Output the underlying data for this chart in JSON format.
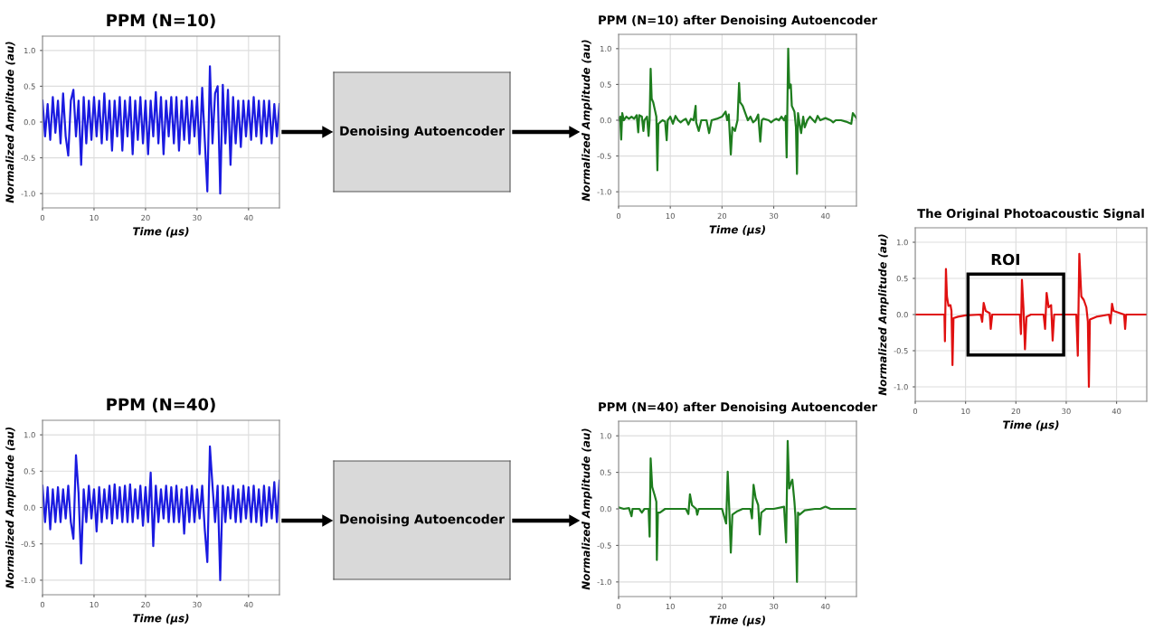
{
  "chart_data": [
    {
      "type": "line",
      "title": "PPM (N=10)",
      "xlabel": "Time (µs)",
      "ylabel": "Normalized Amplitude (au)",
      "color": "#1a1ae0",
      "grid": true,
      "xlim": [
        0,
        46
      ],
      "ylim": [
        -1.2,
        1.2
      ],
      "xticks": [
        0,
        10,
        20,
        30,
        40
      ],
      "yticks": [
        {
          "value": -1,
          "label": "-1.0"
        },
        {
          "value": -0.5,
          "label": "-0.5"
        },
        {
          "value": 0,
          "label": "0.0"
        },
        {
          "value": 0.5,
          "label": "0.5"
        },
        {
          "value": 1,
          "label": "1.0"
        }
      ],
      "x": [
        0,
        0.5,
        1,
        1.5,
        2,
        2.5,
        3,
        3.5,
        4,
        4.5,
        5,
        5.5,
        6,
        6.5,
        7,
        7.5,
        8,
        8.5,
        9,
        9.5,
        10,
        10.5,
        11,
        11.5,
        12,
        12.5,
        13,
        13.5,
        14,
        14.5,
        15,
        15.5,
        16,
        16.5,
        17,
        17.5,
        18,
        18.5,
        19,
        19.5,
        20,
        20.5,
        21,
        21.5,
        22,
        22.5,
        23,
        23.5,
        24,
        24.5,
        25,
        25.5,
        26,
        26.5,
        27,
        27.5,
        28,
        28.5,
        29,
        29.5,
        30,
        30.5,
        31,
        31.5,
        32,
        32.5,
        33,
        33.5,
        34,
        34.5,
        35,
        35.5,
        36,
        36.5,
        37,
        37.5,
        38,
        38.5,
        39,
        39.5,
        40,
        40.5,
        41,
        41.5,
        42,
        42.5,
        43,
        43.5,
        44,
        44.5,
        45,
        45.5,
        46
      ],
      "values": [
        0.3,
        -0.2,
        0.25,
        -0.25,
        0.35,
        -0.15,
        0.3,
        -0.3,
        0.4,
        -0.2,
        -0.47,
        0.3,
        0.45,
        -0.2,
        0.3,
        -0.6,
        0.35,
        -0.3,
        0.3,
        -0.25,
        0.35,
        -0.2,
        0.3,
        -0.3,
        0.4,
        -0.25,
        0.3,
        -0.4,
        0.3,
        -0.2,
        0.35,
        -0.4,
        0.3,
        -0.2,
        0.35,
        -0.45,
        0.3,
        -0.25,
        0.35,
        -0.3,
        0.3,
        -0.45,
        0.3,
        -0.2,
        0.42,
        -0.3,
        0.35,
        -0.45,
        0.3,
        -0.2,
        0.35,
        -0.3,
        0.35,
        -0.4,
        0.3,
        -0.25,
        0.35,
        -0.3,
        0.3,
        -0.2,
        0.35,
        -0.45,
        0.48,
        -0.25,
        -0.97,
        0.78,
        -0.3,
        0.4,
        0.5,
        -1.0,
        0.52,
        -0.3,
        0.45,
        -0.6,
        0.35,
        -0.3,
        0.3,
        -0.35,
        0.3,
        -0.2,
        0.3,
        -0.25,
        0.35,
        -0.2,
        0.3,
        -0.3,
        0.3,
        -0.2,
        0.3,
        -0.3,
        0.25,
        -0.2,
        0.25
      ]
    },
    {
      "type": "line",
      "title": "PPM (N=10) after Denoising Autoencoder",
      "xlabel": "Time (µs)",
      "ylabel": "Normalized Amplitude (au)",
      "color": "#1e7d1e",
      "grid": true,
      "xlim": [
        0,
        46
      ],
      "ylim": [
        -1.2,
        1.2
      ],
      "xticks": [
        0,
        10,
        20,
        30,
        40
      ],
      "yticks": [
        {
          "value": -1,
          "label": "-1.0"
        },
        {
          "value": -0.5,
          "label": "-0.5"
        },
        {
          "value": 0,
          "label": "0.0"
        },
        {
          "value": 0.5,
          "label": "0.5"
        },
        {
          "value": 1,
          "label": "1.0"
        }
      ],
      "x": [
        0,
        0.3,
        0.5,
        0.7,
        1,
        1.5,
        2,
        2.5,
        3,
        3.5,
        3.8,
        4,
        4.5,
        4.8,
        5,
        5.5,
        5.8,
        6,
        6.2,
        6.4,
        6.7,
        7,
        7.3,
        7.5,
        7.7,
        8,
        8.5,
        9,
        9.3,
        9.5,
        10,
        10.5,
        11,
        11.5,
        12,
        12.5,
        13,
        13.5,
        14,
        14.5,
        14.9,
        15,
        15.5,
        16,
        17,
        17.5,
        18,
        19,
        20,
        20.7,
        21,
        21.3,
        21.7,
        22,
        22.5,
        23,
        23.3,
        23.5,
        24,
        24.5,
        25,
        25.5,
        26,
        26.5,
        27,
        27.4,
        27.7,
        28,
        29,
        29.5,
        30,
        30.5,
        31,
        31.5,
        32,
        32.3,
        32.5,
        32.8,
        33,
        33.3,
        33.5,
        34,
        34.3,
        34.5,
        34.7,
        35,
        35.3,
        35.7,
        36,
        36.5,
        37,
        38,
        38.5,
        39,
        40,
        41,
        41.5,
        42,
        43,
        44,
        45,
        45.3,
        46
      ],
      "values": [
        0.0,
        0.05,
        -0.27,
        0.1,
        0.0,
        0.05,
        0.02,
        0.05,
        0.02,
        0.07,
        -0.17,
        0.07,
        0.05,
        -0.15,
        0.0,
        0.05,
        -0.22,
        0.0,
        0.72,
        0.3,
        0.25,
        0.15,
        0.05,
        -0.7,
        -0.05,
        -0.03,
        0.0,
        -0.02,
        -0.28,
        0.0,
        0.05,
        -0.05,
        0.06,
        0.0,
        -0.03,
        0.0,
        0.02,
        -0.06,
        0.02,
        0.0,
        0.2,
        -0.03,
        -0.15,
        0.0,
        0.0,
        -0.18,
        0.0,
        0.02,
        0.05,
        0.12,
        0.0,
        0.08,
        -0.48,
        -0.1,
        -0.15,
        0.0,
        0.52,
        0.25,
        0.2,
        0.1,
        0.0,
        0.05,
        -0.03,
        0.0,
        0.08,
        -0.3,
        0.0,
        0.02,
        0.0,
        -0.03,
        0.0,
        0.02,
        0.0,
        0.05,
        0.0,
        0.06,
        -0.52,
        1.0,
        0.45,
        0.5,
        0.2,
        0.12,
        -0.1,
        -0.75,
        0.1,
        -0.05,
        -0.18,
        0.05,
        -0.1,
        0.0,
        0.05,
        -0.03,
        0.06,
        0.0,
        0.03,
        0.0,
        -0.03,
        0.0,
        0.0,
        -0.02,
        -0.05,
        0.1,
        0.03
      ]
    },
    {
      "type": "line",
      "title": "The Original Photoacoustic Signal",
      "xlabel": "Time (µs)",
      "ylabel": "Normalized Amplitude (au)",
      "color": "#e01010",
      "grid": true,
      "xlim": [
        0,
        46
      ],
      "ylim": [
        -1.2,
        1.2
      ],
      "xticks": [
        0,
        10,
        20,
        30,
        40
      ],
      "yticks": [
        {
          "value": -1,
          "label": "-1.0"
        },
        {
          "value": -0.5,
          "label": "-0.5"
        },
        {
          "value": 0,
          "label": "0.0"
        },
        {
          "value": 0.5,
          "label": "0.5"
        },
        {
          "value": 1,
          "label": "1.0"
        }
      ],
      "annotations": [
        "ROI"
      ],
      "x": [
        0,
        5,
        5.8,
        5.9,
        6.1,
        6.3,
        6.6,
        7,
        7.2,
        7.4,
        7.6,
        8.5,
        10,
        13,
        13.3,
        13.6,
        14,
        14.8,
        15,
        15.3,
        20,
        20.8,
        21,
        21.2,
        21.5,
        21.8,
        22.1,
        23,
        25.5,
        25.8,
        26.1,
        26.5,
        27,
        27.3,
        27.6,
        32,
        32.3,
        32.6,
        33,
        33.5,
        34,
        34.3,
        34.5,
        34.7,
        36,
        38.5,
        38.8,
        39.1,
        39.4,
        41.5,
        41.7,
        41.9,
        46
      ],
      "values": [
        0,
        0,
        0,
        -0.37,
        0.63,
        0.25,
        0.12,
        0.13,
        0.05,
        -0.7,
        -0.05,
        -0.03,
        -0.01,
        0,
        -0.1,
        0.16,
        0.05,
        0.02,
        -0.2,
        0,
        0,
        0,
        -0.27,
        0.48,
        0.1,
        -0.48,
        -0.03,
        0,
        0,
        -0.2,
        0.3,
        0.1,
        0.13,
        -0.36,
        0,
        0,
        -0.57,
        0.84,
        0.25,
        0.2,
        0.1,
        -0.1,
        -1.0,
        -0.07,
        -0.03,
        0,
        -0.12,
        0.15,
        0.05,
        0.0,
        -0.2,
        0,
        0
      ]
    },
    {
      "type": "line",
      "title": "PPM (N=40)",
      "xlabel": "Time (µs)",
      "ylabel": "Normalized Amplitude (au)",
      "color": "#1a1ae0",
      "grid": true,
      "xlim": [
        0,
        46
      ],
      "ylim": [
        -1.2,
        1.2
      ],
      "xticks": [
        0,
        10,
        20,
        30,
        40
      ],
      "yticks": [
        {
          "value": -1,
          "label": "-1.0"
        },
        {
          "value": -0.5,
          "label": "-0.5"
        },
        {
          "value": 0,
          "label": "0.0"
        },
        {
          "value": 0.5,
          "label": "0.5"
        },
        {
          "value": 1,
          "label": "1.0"
        }
      ],
      "x": [
        0,
        0.5,
        1,
        1.5,
        2,
        2.5,
        3,
        3.5,
        4,
        4.5,
        5,
        5.5,
        6,
        6.5,
        7,
        7.5,
        8,
        8.5,
        9,
        9.5,
        10,
        10.5,
        11,
        11.5,
        12,
        12.5,
        13,
        13.5,
        14,
        14.5,
        15,
        15.5,
        16,
        16.5,
        17,
        17.5,
        18,
        18.5,
        19,
        19.5,
        20,
        20.5,
        21,
        21.5,
        22,
        22.5,
        23,
        23.5,
        24,
        24.5,
        25,
        25.5,
        26,
        26.5,
        27,
        27.5,
        28,
        28.5,
        29,
        29.5,
        30,
        30.5,
        31,
        31.5,
        32,
        32.5,
        33,
        33.5,
        34,
        34.5,
        35,
        35.5,
        36,
        36.5,
        37,
        37.5,
        38,
        38.5,
        39,
        39.5,
        40,
        40.5,
        41,
        41.5,
        42,
        42.5,
        43,
        43.5,
        44,
        44.5,
        45,
        45.5,
        46
      ],
      "values": [
        0.3,
        -0.2,
        0.28,
        -0.3,
        0.25,
        -0.2,
        0.28,
        -0.2,
        0.25,
        -0.15,
        0.3,
        -0.2,
        -0.43,
        0.72,
        0.2,
        -0.77,
        0.25,
        -0.2,
        0.3,
        -0.15,
        0.25,
        -0.33,
        0.28,
        -0.2,
        0.25,
        -0.15,
        0.3,
        -0.22,
        0.32,
        -0.15,
        0.28,
        -0.2,
        0.3,
        -0.2,
        0.32,
        -0.2,
        0.25,
        -0.15,
        0.3,
        -0.25,
        0.28,
        -0.2,
        0.48,
        -0.53,
        0.3,
        -0.2,
        0.25,
        -0.15,
        0.3,
        -0.2,
        0.28,
        -0.2,
        0.3,
        -0.2,
        0.25,
        -0.36,
        0.28,
        -0.2,
        0.3,
        -0.2,
        0.25,
        -0.15,
        0.3,
        -0.3,
        -0.75,
        0.84,
        0.3,
        -0.2,
        0.3,
        -1.0,
        0.3,
        -0.2,
        0.28,
        -0.15,
        0.3,
        -0.2,
        0.25,
        -0.2,
        0.3,
        -0.15,
        0.28,
        -0.2,
        0.3,
        -0.2,
        0.25,
        -0.25,
        0.3,
        -0.2,
        0.28,
        -0.15,
        0.35,
        -0.2,
        0.37
      ]
    },
    {
      "type": "line",
      "title": "PPM (N=40) after Denoising Autoencoder",
      "xlabel": "Time (µs)",
      "ylabel": "Normalized Amplitude (au)",
      "color": "#1e7d1e",
      "grid": true,
      "xlim": [
        0,
        46
      ],
      "ylim": [
        -1.2,
        1.2
      ],
      "xticks": [
        0,
        10,
        20,
        30,
        40
      ],
      "yticks": [
        {
          "value": -1,
          "label": "-1.0"
        },
        {
          "value": -0.5,
          "label": "-0.5"
        },
        {
          "value": 0,
          "label": "0.0"
        },
        {
          "value": 0.5,
          "label": "0.5"
        },
        {
          "value": 1,
          "label": "1.0"
        }
      ],
      "x": [
        0,
        1,
        2,
        2.5,
        2.7,
        4,
        4.5,
        5,
        5.8,
        6.0,
        6.2,
        6.5,
        7,
        7.3,
        7.4,
        7.6,
        8,
        9,
        10,
        13,
        13.5,
        13.8,
        14.2,
        15,
        15.2,
        15.5,
        18,
        20,
        20.8,
        21.1,
        21.4,
        21.7,
        22,
        23,
        24,
        25.5,
        25.8,
        26.1,
        26.5,
        27,
        27.3,
        27.6,
        28.5,
        30,
        32,
        32.4,
        32.7,
        33,
        33.3,
        33.6,
        34,
        34.2,
        34.5,
        34.7,
        35,
        36,
        38,
        39,
        40,
        41,
        42,
        44,
        46
      ],
      "values": [
        0.02,
        0.0,
        0.01,
        -0.1,
        0.0,
        0.0,
        -0.05,
        0.0,
        0.0,
        -0.38,
        0.69,
        0.3,
        0.18,
        0.1,
        -0.7,
        -0.05,
        -0.05,
        0.0,
        0.0,
        0.0,
        -0.07,
        0.2,
        0.05,
        0.0,
        -0.08,
        0.0,
        0.0,
        0.0,
        -0.2,
        0.51,
        0.0,
        -0.6,
        -0.08,
        -0.03,
        0.0,
        0.0,
        -0.13,
        0.33,
        0.15,
        0.05,
        -0.35,
        -0.05,
        0.0,
        0.0,
        0.03,
        -0.46,
        0.93,
        0.28,
        0.35,
        0.4,
        0.1,
        -0.1,
        -1.0,
        -0.05,
        -0.08,
        -0.02,
        0.0,
        0.0,
        0.03,
        0.0,
        0.0,
        0.0,
        0.0
      ]
    },
    {
      "type": "other",
      "annotations": [
        "Denoising Autoencoder",
        "Denoising Autoencoder"
      ]
    }
  ]
}
